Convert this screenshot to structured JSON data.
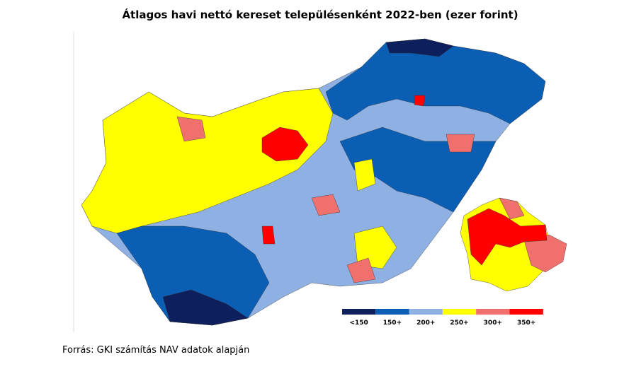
{
  "title": "Átlagos havi nettó kereset településenként 2022-ben (ezer forint)",
  "legend": {
    "items": [
      {
        "label": "<150",
        "color": "#0d1f5c"
      },
      {
        "label": "150+",
        "color": "#0a5fb4"
      },
      {
        "label": "200+",
        "color": "#8fb0e3"
      },
      {
        "label": "250+",
        "color": "#ffff00"
      },
      {
        "label": "300+",
        "color": "#f0706e"
      },
      {
        "label": "350+",
        "color": "#ff0000"
      }
    ]
  },
  "source": "Forrás: GKI számítás NAV adatok alapján"
}
